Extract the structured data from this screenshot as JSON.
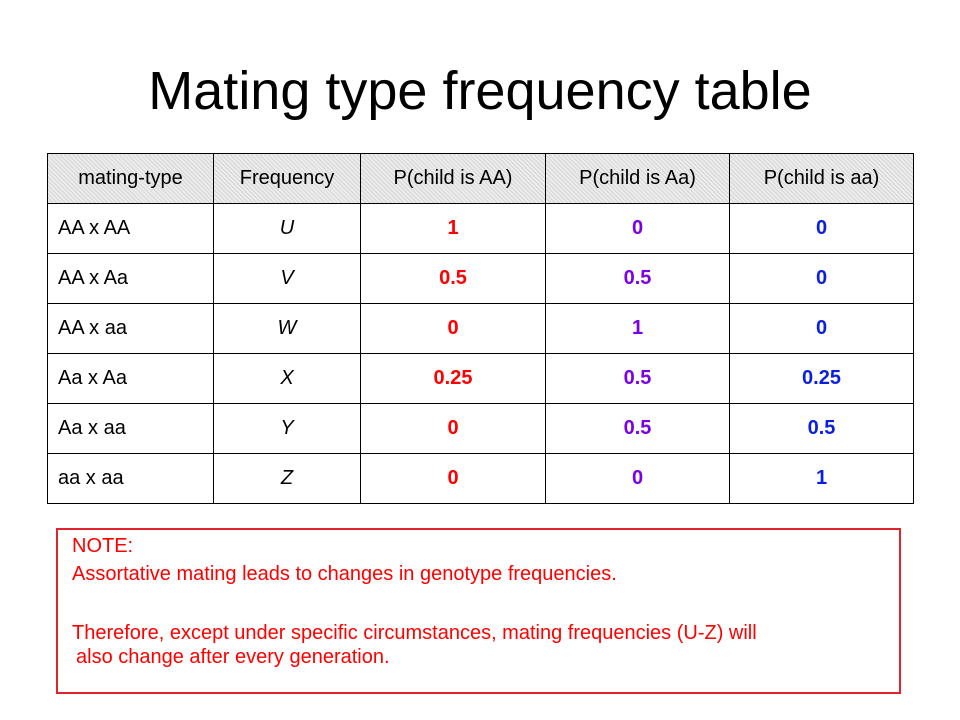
{
  "title": "Mating type frequency table",
  "table": {
    "headers": [
      "mating-type",
      "Frequency",
      "P(child is AA)",
      "P(child is Aa)",
      "P(child is aa)"
    ],
    "rows": [
      {
        "type": "AA x AA",
        "freq": "U",
        "p_AA": "1",
        "p_Aa": "0",
        "p_aa": "0"
      },
      {
        "type": "AA x Aa",
        "freq": "V",
        "p_AA": "0.5",
        "p_Aa": "0.5",
        "p_aa": "0"
      },
      {
        "type": "AA x aa",
        "freq": "W",
        "p_AA": "0",
        "p_Aa": "1",
        "p_aa": "0"
      },
      {
        "type": "Aa x Aa",
        "freq": "X",
        "p_AA": "0.25",
        "p_Aa": "0.5",
        "p_aa": "0.25"
      },
      {
        "type": "Aa x aa",
        "freq": "Y",
        "p_AA": "0",
        "p_Aa": "0.5",
        "p_aa": "0.5"
      },
      {
        "type": "aa x aa",
        "freq": "Z",
        "p_AA": "0",
        "p_Aa": "0",
        "p_aa": "1"
      }
    ]
  },
  "note": {
    "heading": "NOTE:",
    "line1": "Assortative mating leads to changes in genotype frequencies.",
    "line2a": "Therefore, except under specific circumstances, mating frequencies (U-Z) will",
    "line2b": "also change after every generation."
  },
  "colors": {
    "p_AA": "#ff0000",
    "p_Aa": "#7a00e6",
    "p_aa": "#0a1fe0",
    "note_text": "#ff0000",
    "note_border": "#e0242c"
  }
}
